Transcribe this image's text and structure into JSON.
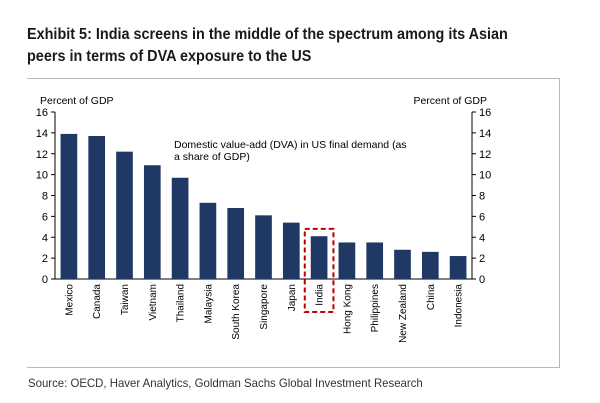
{
  "page": {
    "title_lines": [
      "Exhibit 5: India screens in the middle of the spectrum among its Asian",
      "peers in terms of DVA exposure to the US"
    ],
    "source": "Source: OECD, Haver Analytics, Goldman Sachs Global Investment Research"
  },
  "chart_data": {
    "type": "bar",
    "categories": [
      "Mexico",
      "Canada",
      "Taiwan",
      "Vietnam",
      "Thailand",
      "Malaysia",
      "South Korea",
      "Singapore",
      "Japan",
      "India",
      "Hong Kong",
      "Philippines",
      "New Zealand",
      "China",
      "Indonesia"
    ],
    "values": [
      13.9,
      13.7,
      12.2,
      10.9,
      9.7,
      7.3,
      6.8,
      6.1,
      5.4,
      4.1,
      3.5,
      3.5,
      2.8,
      2.6,
      2.2
    ],
    "highlight": "India",
    "ylabel_left": "Percent of GDP",
    "ylabel_right": "Percent of GDP",
    "ylim": [
      0,
      16
    ],
    "yticks": [
      0,
      2,
      4,
      6,
      8,
      10,
      12,
      14,
      16
    ],
    "annotation_lines": [
      "Domestic value-add (DVA) in US final demand (as",
      "a share of GDP)"
    ],
    "grid": false,
    "colors": {
      "bar": "#1f3864",
      "highlight_border": "#c00000",
      "axis": "#000000"
    }
  }
}
